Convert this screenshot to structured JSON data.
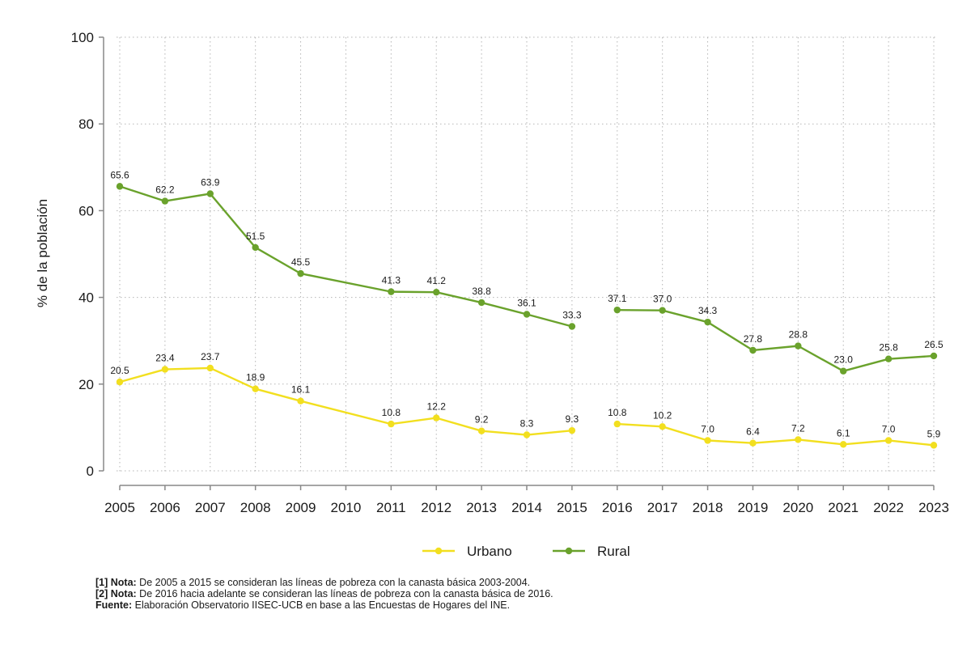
{
  "chart_data": {
    "type": "line",
    "ylabel": "% de la población",
    "xlabel": "",
    "ylim": [
      0,
      100
    ],
    "yticks": [
      0,
      20,
      40,
      60,
      80,
      100
    ],
    "grid": true,
    "legend_position": "bottom-center",
    "categories": [
      "2005",
      "2006",
      "2007",
      "2008",
      "2009",
      "2010",
      "2011",
      "2012",
      "2013",
      "2014",
      "2015",
      "2016",
      "2017",
      "2018",
      "2019",
      "2020",
      "2021",
      "2022",
      "2023"
    ],
    "series": [
      {
        "name": "Urbano",
        "color": "#f2df1f",
        "values": [
          20.5,
          23.4,
          23.7,
          18.9,
          16.1,
          null,
          10.8,
          12.2,
          9.2,
          8.3,
          9.3,
          10.8,
          10.2,
          7.0,
          6.4,
          7.2,
          6.1,
          7.0,
          5.9
        ],
        "labels": [
          "20.5",
          "23.4",
          "23.7",
          "18.9",
          "16.1",
          "",
          "10.8",
          "12.2",
          "9.2",
          "8.3",
          "9.3",
          "10.8",
          "10.2",
          "7.0",
          "6.4",
          "7.2",
          "6.1",
          "7.0",
          "5.9"
        ],
        "breaks": [
          "2015-2016"
        ]
      },
      {
        "name": "Rural",
        "color": "#6aa22c",
        "values": [
          65.6,
          62.2,
          63.9,
          51.5,
          45.5,
          null,
          41.3,
          41.2,
          38.8,
          36.1,
          33.3,
          37.1,
          37.0,
          34.3,
          27.8,
          28.8,
          23.0,
          25.8,
          26.5
        ],
        "labels": [
          "65.6",
          "62.2",
          "63.9",
          "51.5",
          "45.5",
          "",
          "41.3",
          "41.2",
          "38.8",
          "36.1",
          "33.3",
          "37.1",
          "37.0",
          "34.3",
          "27.8",
          "28.8",
          "23.0",
          "25.8",
          "26.5"
        ],
        "breaks": [
          "2015-2016"
        ]
      }
    ]
  },
  "notes": {
    "note1_tag": "[1] Nota:",
    "note1_text": " De 2005 a 2015 se consideran las líneas de pobreza con la canasta básica 2003-2004.",
    "note2_tag": "[2] Nota:",
    "note2_text": " De 2016 hacia adelante se consideran las líneas de pobreza con la canasta básica de 2016.",
    "source_tag": "Fuente:",
    "source_text": " Elaboración Observatorio IISEC-UCB en base a las Encuestas de Hogares del INE."
  }
}
